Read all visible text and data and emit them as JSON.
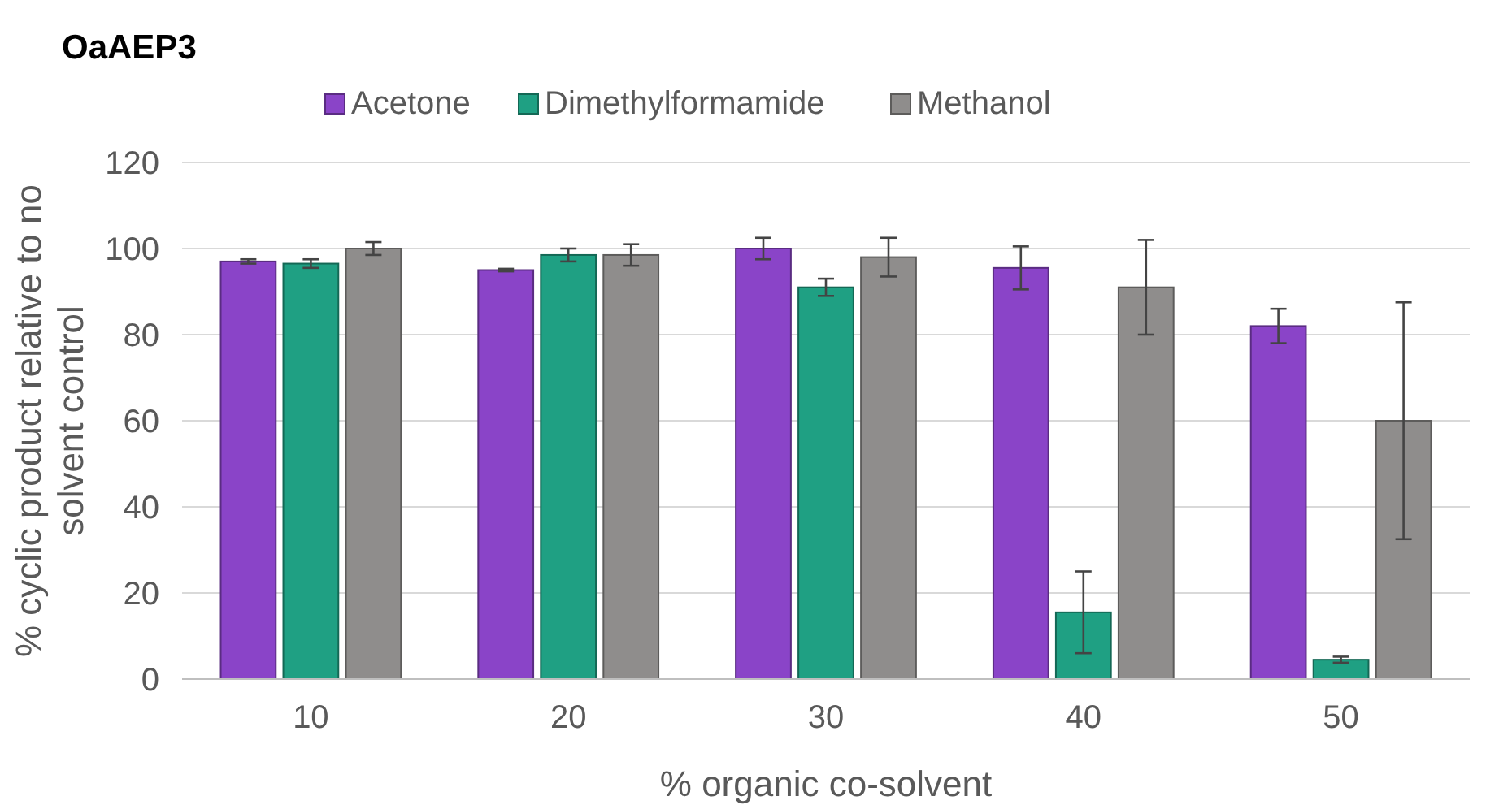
{
  "chart_data": {
    "type": "bar",
    "title": "OaAEP3",
    "xlabel": "% organic co-solvent",
    "ylabel": "% cyclic product relative to no solvent control",
    "categories": [
      "10",
      "20",
      "30",
      "40",
      "50"
    ],
    "series": [
      {
        "name": "Acetone",
        "color": "#8a44c8",
        "values": [
          97,
          95,
          100,
          95.5,
          82
        ],
        "errors": [
          0.5,
          0.3,
          2.5,
          5,
          4
        ]
      },
      {
        "name": "Dimethylformamide",
        "color": "#1fa083",
        "values": [
          96.5,
          98.5,
          91,
          15.5,
          4.5
        ],
        "errors": [
          1,
          1.5,
          2,
          9.5,
          0.7
        ]
      },
      {
        "name": "Methanol",
        "color": "#8f8d8c",
        "values": [
          100,
          98.5,
          98,
          91,
          60
        ],
        "errors": [
          1.5,
          2.5,
          4.5,
          11,
          27.5
        ]
      }
    ],
    "ylim": [
      0,
      120
    ],
    "yticks": [
      0,
      20,
      40,
      60,
      80,
      100,
      120
    ],
    "grid": "y",
    "legend": "top"
  }
}
